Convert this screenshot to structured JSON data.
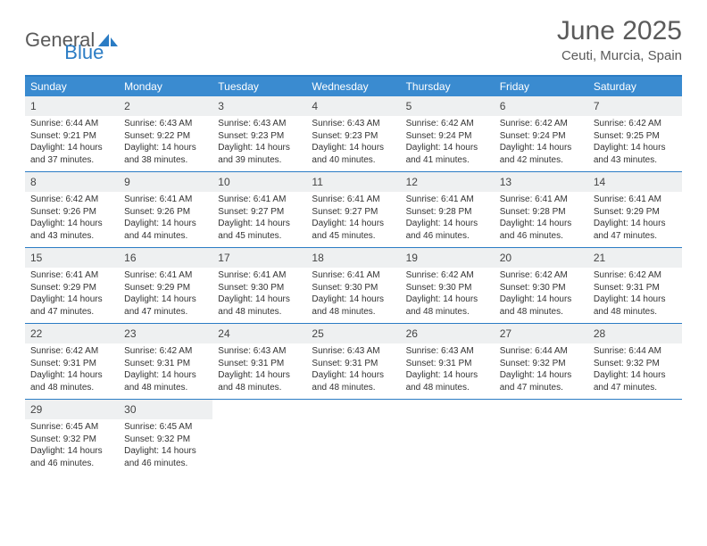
{
  "logo": {
    "text1": "General",
    "text2": "Blue"
  },
  "title": "June 2025",
  "location": "Ceuti, Murcia, Spain",
  "colors": {
    "header_bg": "#3a8bd0",
    "border": "#2b7cc4",
    "daynum_bg": "#eef0f1",
    "text": "#333333",
    "title_text": "#5a5a5a"
  },
  "day_headers": [
    "Sunday",
    "Monday",
    "Tuesday",
    "Wednesday",
    "Thursday",
    "Friday",
    "Saturday"
  ],
  "weeks": [
    [
      {
        "n": "1",
        "sr": "6:44 AM",
        "ss": "9:21 PM",
        "dl": "14 hours and 37 minutes."
      },
      {
        "n": "2",
        "sr": "6:43 AM",
        "ss": "9:22 PM",
        "dl": "14 hours and 38 minutes."
      },
      {
        "n": "3",
        "sr": "6:43 AM",
        "ss": "9:23 PM",
        "dl": "14 hours and 39 minutes."
      },
      {
        "n": "4",
        "sr": "6:43 AM",
        "ss": "9:23 PM",
        "dl": "14 hours and 40 minutes."
      },
      {
        "n": "5",
        "sr": "6:42 AM",
        "ss": "9:24 PM",
        "dl": "14 hours and 41 minutes."
      },
      {
        "n": "6",
        "sr": "6:42 AM",
        "ss": "9:24 PM",
        "dl": "14 hours and 42 minutes."
      },
      {
        "n": "7",
        "sr": "6:42 AM",
        "ss": "9:25 PM",
        "dl": "14 hours and 43 minutes."
      }
    ],
    [
      {
        "n": "8",
        "sr": "6:42 AM",
        "ss": "9:26 PM",
        "dl": "14 hours and 43 minutes."
      },
      {
        "n": "9",
        "sr": "6:41 AM",
        "ss": "9:26 PM",
        "dl": "14 hours and 44 minutes."
      },
      {
        "n": "10",
        "sr": "6:41 AM",
        "ss": "9:27 PM",
        "dl": "14 hours and 45 minutes."
      },
      {
        "n": "11",
        "sr": "6:41 AM",
        "ss": "9:27 PM",
        "dl": "14 hours and 45 minutes."
      },
      {
        "n": "12",
        "sr": "6:41 AM",
        "ss": "9:28 PM",
        "dl": "14 hours and 46 minutes."
      },
      {
        "n": "13",
        "sr": "6:41 AM",
        "ss": "9:28 PM",
        "dl": "14 hours and 46 minutes."
      },
      {
        "n": "14",
        "sr": "6:41 AM",
        "ss": "9:29 PM",
        "dl": "14 hours and 47 minutes."
      }
    ],
    [
      {
        "n": "15",
        "sr": "6:41 AM",
        "ss": "9:29 PM",
        "dl": "14 hours and 47 minutes."
      },
      {
        "n": "16",
        "sr": "6:41 AM",
        "ss": "9:29 PM",
        "dl": "14 hours and 47 minutes."
      },
      {
        "n": "17",
        "sr": "6:41 AM",
        "ss": "9:30 PM",
        "dl": "14 hours and 48 minutes."
      },
      {
        "n": "18",
        "sr": "6:41 AM",
        "ss": "9:30 PM",
        "dl": "14 hours and 48 minutes."
      },
      {
        "n": "19",
        "sr": "6:42 AM",
        "ss": "9:30 PM",
        "dl": "14 hours and 48 minutes."
      },
      {
        "n": "20",
        "sr": "6:42 AM",
        "ss": "9:30 PM",
        "dl": "14 hours and 48 minutes."
      },
      {
        "n": "21",
        "sr": "6:42 AM",
        "ss": "9:31 PM",
        "dl": "14 hours and 48 minutes."
      }
    ],
    [
      {
        "n": "22",
        "sr": "6:42 AM",
        "ss": "9:31 PM",
        "dl": "14 hours and 48 minutes."
      },
      {
        "n": "23",
        "sr": "6:42 AM",
        "ss": "9:31 PM",
        "dl": "14 hours and 48 minutes."
      },
      {
        "n": "24",
        "sr": "6:43 AM",
        "ss": "9:31 PM",
        "dl": "14 hours and 48 minutes."
      },
      {
        "n": "25",
        "sr": "6:43 AM",
        "ss": "9:31 PM",
        "dl": "14 hours and 48 minutes."
      },
      {
        "n": "26",
        "sr": "6:43 AM",
        "ss": "9:31 PM",
        "dl": "14 hours and 48 minutes."
      },
      {
        "n": "27",
        "sr": "6:44 AM",
        "ss": "9:32 PM",
        "dl": "14 hours and 47 minutes."
      },
      {
        "n": "28",
        "sr": "6:44 AM",
        "ss": "9:32 PM",
        "dl": "14 hours and 47 minutes."
      }
    ],
    [
      {
        "n": "29",
        "sr": "6:45 AM",
        "ss": "9:32 PM",
        "dl": "14 hours and 46 minutes."
      },
      {
        "n": "30",
        "sr": "6:45 AM",
        "ss": "9:32 PM",
        "dl": "14 hours and 46 minutes."
      },
      null,
      null,
      null,
      null,
      null
    ]
  ],
  "labels": {
    "sunrise": "Sunrise: ",
    "sunset": "Sunset: ",
    "daylight": "Daylight: "
  }
}
